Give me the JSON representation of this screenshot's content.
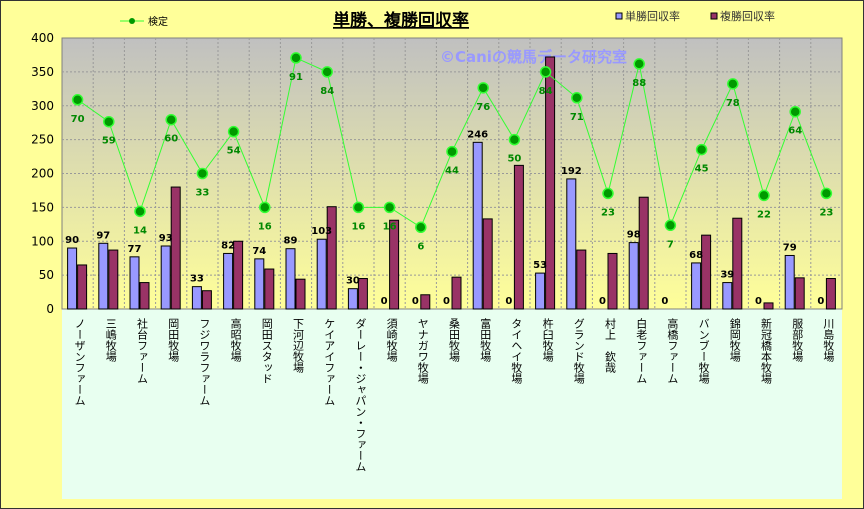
{
  "chart_data": {
    "type": "bar",
    "title": "単勝、複勝回収率",
    "watermark": "©Caniの競馬データ研究室",
    "ylim": [
      0,
      400
    ],
    "yticks": [
      0,
      50,
      100,
      150,
      200,
      250,
      300,
      350,
      400
    ],
    "secondary_ylim": [
      -35,
      101
    ],
    "grid": true,
    "legend_placement": "top",
    "categories": [
      "ノーザンファーム",
      "三嶋牧場",
      "社台ファーム",
      "岡田牧場",
      "フジワラファーム",
      "高昭牧場",
      "岡田スタッド",
      "下河辺牧場",
      "ケイアイファーム",
      "ダーレー・ジャパン・ファーム",
      "須崎牧場",
      "ヤナガワ牧場",
      "桑田牧場",
      "富田牧場",
      "タイヘイ牧場",
      "杵臼牧場",
      "グランド牧場",
      "村上　欽哉",
      "白老ファーム",
      "高橋ファーム",
      "バンブー牧場",
      "錦岡牧場",
      "新冠橋本牧場",
      "服部牧場",
      "川島牧場"
    ],
    "series": [
      {
        "name": "単勝回収率",
        "type": "bar",
        "color": "#9999FF",
        "values": [
          90,
          97,
          77,
          93,
          33,
          82,
          74,
          89,
          103,
          30,
          0,
          0,
          0,
          246,
          0,
          53,
          192,
          0,
          98,
          0,
          68,
          39,
          0,
          79,
          0
        ]
      },
      {
        "name": "複勝回収率",
        "type": "bar",
        "color": "#993366",
        "values": [
          65,
          87,
          39,
          180,
          27,
          100,
          59,
          44,
          151,
          45,
          131,
          21,
          47,
          133,
          212,
          372,
          87,
          82,
          165,
          0,
          109,
          134,
          9,
          46,
          45
        ]
      },
      {
        "name": "検定",
        "type": "line",
        "axis": "secondary",
        "color": "#33FF33",
        "marker_color": "#009900",
        "values": [
          70,
          59,
          14,
          60,
          33,
          54,
          16,
          91,
          84,
          16,
          16,
          6,
          44,
          76,
          50,
          84,
          71,
          23,
          88,
          7,
          45,
          78,
          22,
          64,
          23
        ]
      }
    ]
  }
}
